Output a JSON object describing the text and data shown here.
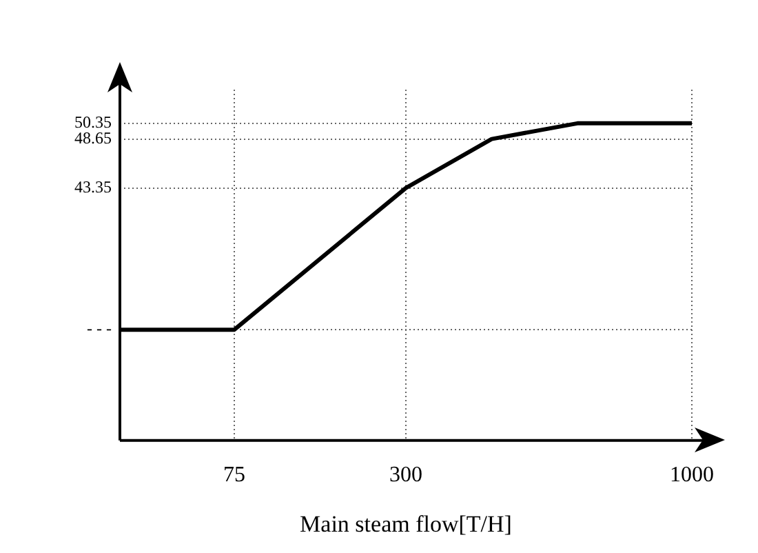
{
  "chart_data": {
    "type": "line",
    "xlabel": "Main steam flow[T/H]",
    "categories": [
      null,
      null,
      null,
      null,
      "75",
      null,
      null,
      null,
      null,
      null,
      "300",
      null,
      null,
      null,
      null,
      null,
      null,
      null,
      null,
      null,
      "1000"
    ],
    "series": [
      {
        "color": "#000000",
        "values": [
          28,
          null,
          null,
          null,
          28,
          null,
          null,
          null,
          null,
          null,
          43.35,
          null,
          null,
          48.65,
          null,
          null,
          50.35,
          null,
          null,
          null,
          50.35
        ]
      }
    ],
    "ylim": [
      16,
      54
    ],
    "yticks": [
      {
        "value": 28,
        "label": "- - -"
      },
      43.35,
      48.65,
      50.35
    ],
    "grid": true,
    "legend": false,
    "marker": "none",
    "line_style": "solid"
  }
}
